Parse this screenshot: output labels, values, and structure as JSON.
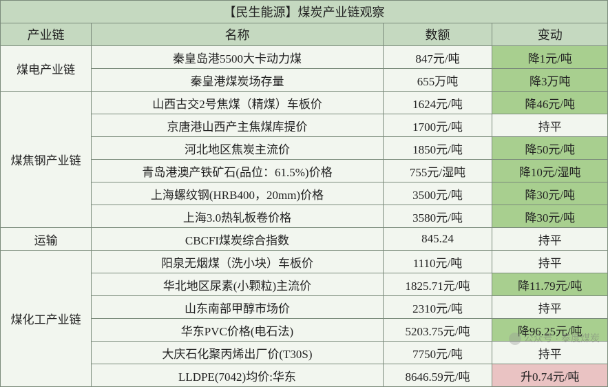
{
  "title": "【民生能源】煤炭产业链观察",
  "headers": {
    "c1": "产业链",
    "c2": "名称",
    "c3": "数额",
    "c4": "变动"
  },
  "groups": [
    {
      "chain": "煤电产业链",
      "rows": [
        {
          "name": "秦皇岛港5500大卡动力煤",
          "value": "847元/吨",
          "change": "降1元/吨",
          "chg_class": "green"
        },
        {
          "name": "秦皇港煤炭场存量",
          "value": "655万吨",
          "change": "降3万吨",
          "chg_class": "green"
        }
      ]
    },
    {
      "chain": "煤焦钢产业链",
      "rows": [
        {
          "name": "山西古交2号焦煤（精煤）车板价",
          "value": "1624元/吨",
          "change": "降46元/吨",
          "chg_class": "green"
        },
        {
          "name": "京唐港山西产主焦煤库提价",
          "value": "1700元/吨",
          "change": "持平",
          "chg_class": "pale"
        },
        {
          "name": "河北地区焦炭主流价",
          "value": "1850元/吨",
          "change": "降50元/吨",
          "chg_class": "green"
        },
        {
          "name": "青岛港澳产铁矿石(品位：61.5%)价格",
          "value": "755元/湿吨",
          "change": "降10元/湿吨",
          "chg_class": "green"
        },
        {
          "name": "上海螺纹钢(HRB400，20mm)价格",
          "value": "3500元/吨",
          "change": "降30元/吨",
          "chg_class": "green"
        },
        {
          "name": "上海3.0热轧板卷价格",
          "value": "3580元/吨",
          "change": "降30元/吨",
          "chg_class": "green"
        }
      ]
    },
    {
      "chain": "运输",
      "rows": [
        {
          "name": "CBCFI煤炭综合指数",
          "value": "845.24",
          "change": "持平",
          "chg_class": "pale"
        }
      ]
    },
    {
      "chain": "煤化工产业链",
      "rows": [
        {
          "name": "阳泉无烟煤（洗小块）车板价",
          "value": "1110元/吨",
          "change": "持平",
          "chg_class": "pale"
        },
        {
          "name": "华北地区尿素(小颗粒)主流价",
          "value": "1825.71元/吨",
          "change": "降11.79元/吨",
          "chg_class": "green"
        },
        {
          "name": "山东南部甲醇市场价",
          "value": "2310元/吨",
          "change": "持平",
          "chg_class": "pale"
        },
        {
          "name": "华东PVC价格(电石法)",
          "value": "5203.75元/吨",
          "change": "降96.25元/吨",
          "chg_class": "green"
        },
        {
          "name": "大庆石化聚丙烯出厂价(T30S)",
          "value": "7750元/吨",
          "change": "持平",
          "chg_class": "pale"
        },
        {
          "name": "LLDPE(7042)均价:华东",
          "value": "8646.59元/吨",
          "change": "升0.74元/吨",
          "chg_class": "pink"
        }
      ]
    }
  ],
  "watermark": "公众号 · 泰度煤炭",
  "style": {
    "header_bg": "#c5d9c0",
    "pale_bg": "#f2f6ef",
    "green_bg": "#a8cf8f",
    "pink_bg": "#eac3c3",
    "border_color": "#7a8a7a",
    "font_size_body": 17,
    "font_size_header": 18,
    "col_widths_pct": [
      15,
      48,
      18,
      19
    ]
  }
}
